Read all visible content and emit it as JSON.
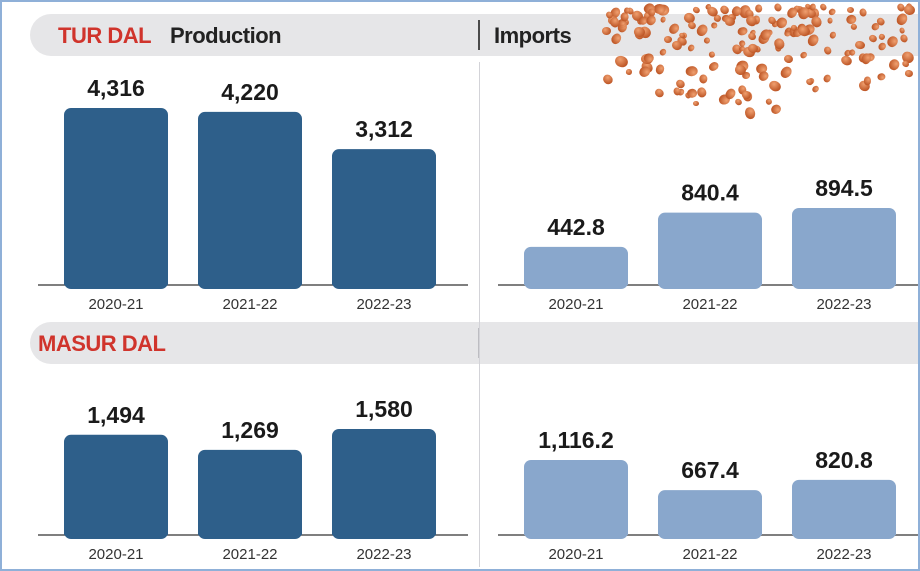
{
  "headers": {
    "tur_dal": "TUR DAL",
    "production": "Production",
    "imports": "Imports",
    "masur_dal": "MASUR DAL"
  },
  "colors": {
    "production_bar": "#2e5f8a",
    "imports_bar": "#89a7cc",
    "label_red": "#d0342c"
  },
  "decoration": {
    "image": "red-lentils-photo"
  },
  "chart_data": [
    {
      "type": "bar",
      "panel": "TUR DAL Production",
      "categories": [
        "2020-21",
        "2021-22",
        "2022-23"
      ],
      "values": [
        4316,
        4220,
        3312
      ],
      "value_labels": [
        "4,316",
        "4,220",
        "3,312"
      ],
      "grid": false
    },
    {
      "type": "bar",
      "panel": "TUR DAL Imports",
      "categories": [
        "2020-21",
        "2021-22",
        "2022-23"
      ],
      "values": [
        442.8,
        840.4,
        894.5
      ],
      "value_labels": [
        "442.8",
        "840.4",
        "894.5"
      ],
      "grid": false
    },
    {
      "type": "bar",
      "panel": "MASUR DAL Production",
      "categories": [
        "2020-21",
        "2021-22",
        "2022-23"
      ],
      "values": [
        1494,
        1269,
        1580
      ],
      "value_labels": [
        "1,494",
        "1,269",
        "1,580"
      ],
      "grid": false
    },
    {
      "type": "bar",
      "panel": "MASUR DAL Imports",
      "categories": [
        "2020-21",
        "2021-22",
        "2022-23"
      ],
      "values": [
        1116.2,
        667.4,
        820.8
      ],
      "value_labels": [
        "1,116.2",
        "667.4",
        "820.8"
      ],
      "grid": false
    }
  ]
}
